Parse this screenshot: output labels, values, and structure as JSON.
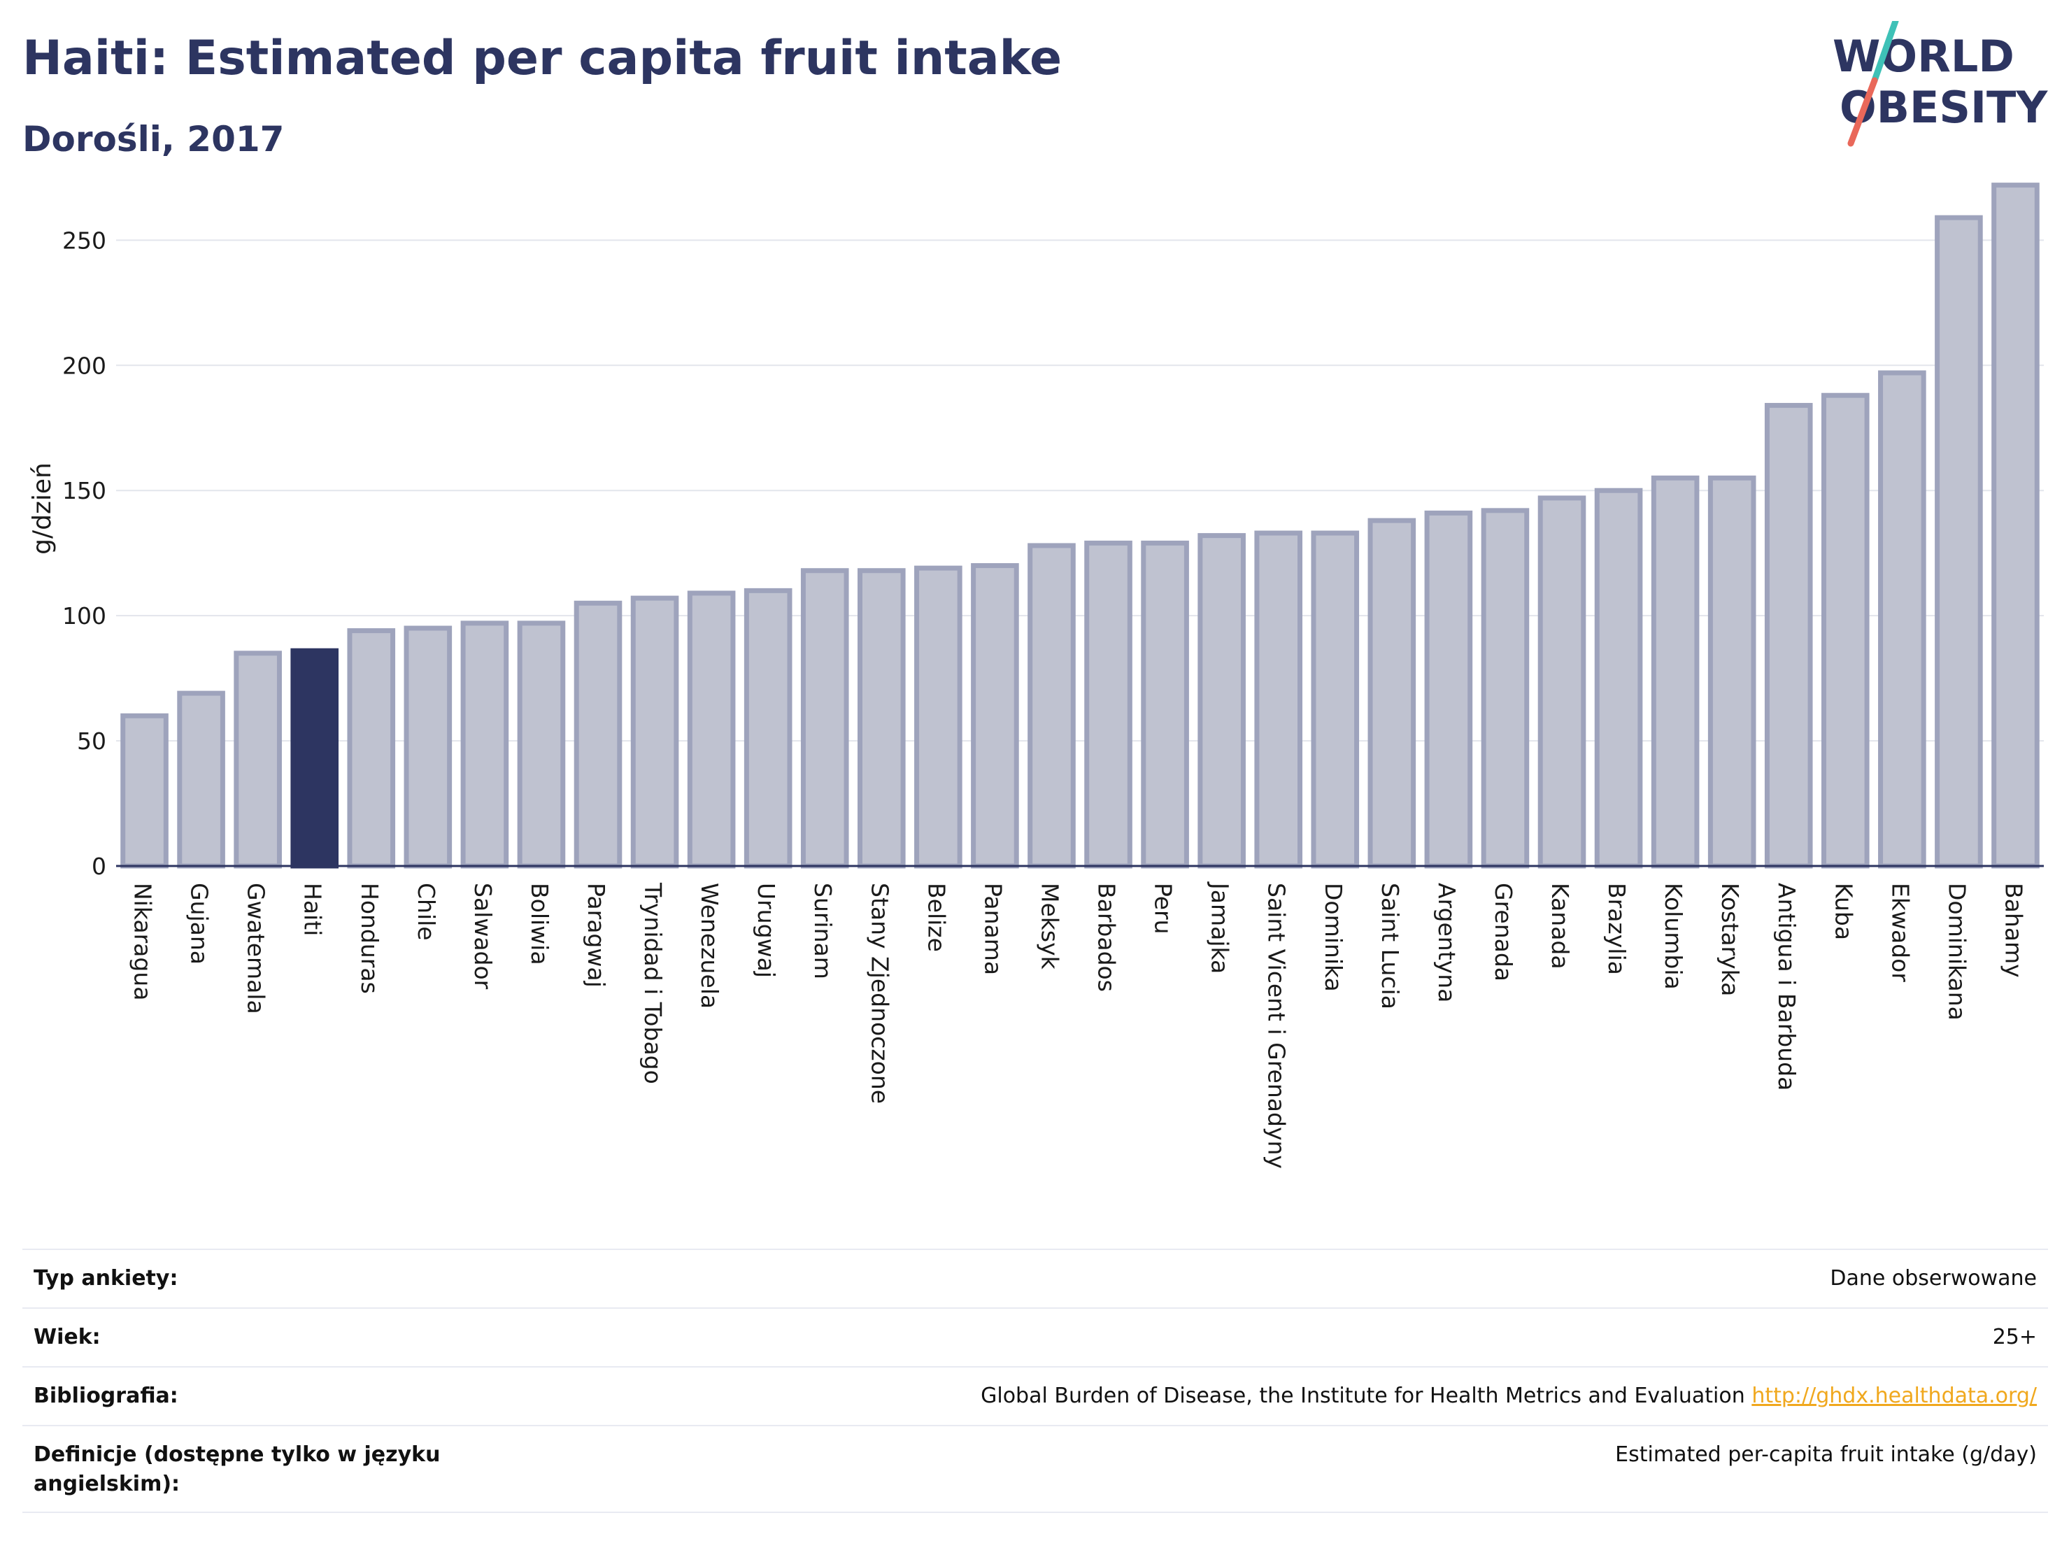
{
  "header": {
    "title": "Haiti: Estimated per capita fruit intake",
    "subtitle": "Dorośli, 2017"
  },
  "logo": {
    "line1": "WORLD",
    "line2": "OBESITY"
  },
  "colors": {
    "bar": "#bfc2d0",
    "bar_border": "#9ea3bc",
    "highlight": "#2d3561",
    "axis": "#2d3561",
    "grid": "#e3e5ec",
    "link": "#f0a81e"
  },
  "chart_data": {
    "type": "bar",
    "ylabel": "g/dzień",
    "ylim": [
      0,
      280
    ],
    "yticks": [
      0,
      50,
      100,
      150,
      200,
      250
    ],
    "grid": true,
    "highlight": "Haiti",
    "categories": [
      "Nikaragua",
      "Gujana",
      "Gwatemala",
      "Haiti",
      "Honduras",
      "Chile",
      "Salwador",
      "Boliwia",
      "Paragwaj",
      "Trynidad i Tobago",
      "Wenezuela",
      "Urugwaj",
      "Surinam",
      "Stany Zjednoczone",
      "Belize",
      "Panama",
      "Meksyk",
      "Barbados",
      "Peru",
      "Jamajka",
      "Saint Vicent i Grenadyny",
      "Dominika",
      "Saint Lucia",
      "Argentyna",
      "Grenada",
      "Kanada",
      "Brazylia",
      "Kolumbia",
      "Kostaryka",
      "Antigua i Barbuda",
      "Kuba",
      "Ekwador",
      "Dominikana",
      "Bahamy"
    ],
    "values": [
      60,
      69,
      85,
      86,
      94,
      95,
      97,
      97,
      105,
      107,
      109,
      110,
      118,
      118,
      119,
      120,
      128,
      129,
      129,
      132,
      133,
      133,
      138,
      141,
      142,
      147,
      150,
      155,
      155,
      184,
      188,
      197,
      259,
      272
    ]
  },
  "meta": [
    {
      "label": "Typ ankiety:",
      "value": "Dane obserwowane"
    },
    {
      "label": "Wiek:",
      "value": "25+"
    },
    {
      "label": "Bibliografia:",
      "value": "Global Burden of Disease, the Institute for Health Metrics and Evaluation",
      "link": "http://ghdx.healthdata.org/"
    },
    {
      "label": "Definicje (dostępne tylko w języku angielskim):",
      "value": "Estimated per-capita fruit intake (g/day)"
    }
  ]
}
